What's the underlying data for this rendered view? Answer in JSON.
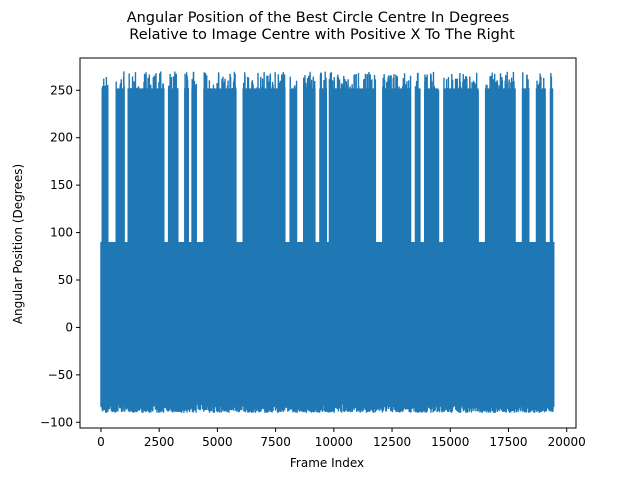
{
  "chart_data": {
    "type": "line",
    "title_line1": "Angular Position of the Best Circle Centre In Degrees",
    "title_line2": "Relative to Image Centre with Positive X To The Right",
    "xlabel": "Frame Index",
    "ylabel": "Angular Position (Degrees)",
    "xlim": [
      -900,
      20400
    ],
    "ylim": [
      -106,
      284
    ],
    "xticks": [
      0,
      2500,
      5000,
      7500,
      10000,
      12500,
      15000,
      17500,
      20000
    ],
    "yticks": [
      -100,
      -50,
      0,
      50,
      100,
      150,
      200,
      250
    ],
    "grid": false,
    "series": [
      {
        "color": "#1f77b4",
        "x_start": 0,
        "x_end": 19450,
        "core_band": [
          -50,
          90
        ],
        "dense_range": [
          -90,
          90
        ],
        "spike_ceiling_range": [
          250,
          270
        ],
        "spike_regions": [
          [
            50,
            300
          ],
          [
            650,
            1000
          ],
          [
            1150,
            2700
          ],
          [
            2900,
            3300
          ],
          [
            3600,
            3750
          ],
          [
            3900,
            4100
          ],
          [
            4400,
            5800
          ],
          [
            6100,
            7900
          ],
          [
            8100,
            8400
          ],
          [
            8700,
            9200
          ],
          [
            9400,
            9700
          ],
          [
            9800,
            11800
          ],
          [
            12100,
            13300
          ],
          [
            13500,
            13700
          ],
          [
            13900,
            14500
          ],
          [
            14700,
            16200
          ],
          [
            16500,
            17800
          ],
          [
            18100,
            18400
          ],
          [
            18700,
            19100
          ],
          [
            19300,
            19400
          ]
        ]
      }
    ]
  }
}
